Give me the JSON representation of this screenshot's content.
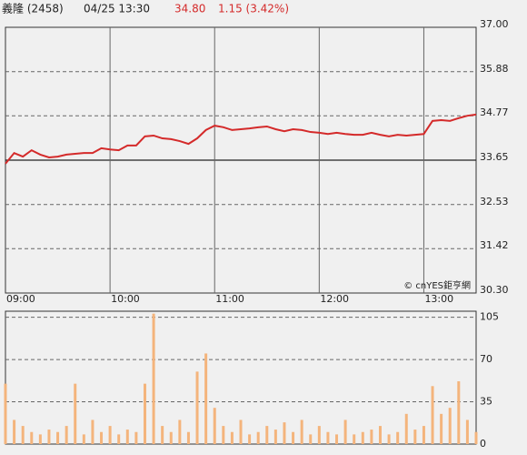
{
  "header": {
    "name": "義隆 (2458)",
    "time": "04/25 13:30",
    "price": "34.80",
    "change": "1.15 (3.42%)"
  },
  "chart_data": [
    {
      "type": "line",
      "annotation": "© cnYES鉅亨網",
      "x": [
        "09:00",
        "09:05",
        "09:10",
        "09:15",
        "09:20",
        "09:25",
        "09:30",
        "09:35",
        "09:40",
        "09:45",
        "09:50",
        "09:55",
        "10:00",
        "10:05",
        "10:10",
        "10:15",
        "10:20",
        "10:25",
        "10:30",
        "10:35",
        "10:40",
        "10:45",
        "10:50",
        "10:55",
        "11:00",
        "11:05",
        "11:10",
        "11:15",
        "11:20",
        "11:25",
        "11:30",
        "11:35",
        "11:40",
        "11:45",
        "11:50",
        "11:55",
        "12:00",
        "12:05",
        "12:10",
        "12:15",
        "12:20",
        "12:25",
        "12:30",
        "12:35",
        "12:40",
        "12:45",
        "12:50",
        "12:55",
        "13:00",
        "13:05",
        "13:10",
        "13:15",
        "13:20",
        "13:25",
        "13:30"
      ],
      "series": [
        {
          "color": "#d42a2a",
          "values": [
            33.56,
            33.83,
            33.74,
            33.9,
            33.79,
            33.72,
            33.74,
            33.79,
            33.81,
            33.83,
            33.83,
            33.95,
            33.92,
            33.9,
            34.02,
            34.02,
            34.25,
            34.27,
            34.2,
            34.18,
            34.13,
            34.06,
            34.2,
            34.41,
            34.52,
            34.48,
            34.41,
            34.43,
            34.45,
            34.48,
            34.5,
            34.43,
            34.38,
            34.43,
            34.41,
            34.36,
            34.34,
            34.31,
            34.34,
            34.31,
            34.29,
            34.29,
            34.34,
            34.29,
            34.25,
            34.29,
            34.27,
            34.29,
            34.31,
            34.64,
            34.66,
            34.64,
            34.71,
            34.77,
            34.8
          ]
        }
      ],
      "xlim": [
        "09:00",
        "13:30"
      ],
      "xticks": [
        "09:00",
        "10:00",
        "11:00",
        "12:00",
        "13:00"
      ],
      "ylim": [
        30.3,
        37
      ],
      "yticks": [
        {
          "value": 30.3,
          "label": "30.30"
        },
        31.42,
        32.53,
        33.65,
        34.77,
        35.88,
        {
          "value": 37,
          "label": "37.00"
        }
      ],
      "reference_line": 33.65,
      "grid": true
    },
    {
      "type": "bar",
      "color": "#f4b47c",
      "x": [
        "09:00",
        "09:05",
        "09:10",
        "09:15",
        "09:20",
        "09:25",
        "09:30",
        "09:35",
        "09:40",
        "09:45",
        "09:50",
        "09:55",
        "10:00",
        "10:05",
        "10:10",
        "10:15",
        "10:20",
        "10:25",
        "10:30",
        "10:35",
        "10:40",
        "10:45",
        "10:50",
        "10:55",
        "11:00",
        "11:05",
        "11:10",
        "11:15",
        "11:20",
        "11:25",
        "11:30",
        "11:35",
        "11:40",
        "11:45",
        "11:50",
        "11:55",
        "12:00",
        "12:05",
        "12:10",
        "12:15",
        "12:20",
        "12:25",
        "12:30",
        "12:35",
        "12:40",
        "12:45",
        "12:50",
        "12:55",
        "13:00",
        "13:05",
        "13:10",
        "13:15",
        "13:20",
        "13:25",
        "13:30"
      ],
      "values": [
        50,
        20,
        15,
        10,
        8,
        12,
        10,
        15,
        50,
        8,
        20,
        10,
        15,
        8,
        12,
        10,
        50,
        108,
        15,
        10,
        20,
        10,
        60,
        75,
        30,
        15,
        10,
        20,
        8,
        10,
        15,
        12,
        18,
        10,
        20,
        8,
        15,
        10,
        8,
        20,
        8,
        10,
        12,
        15,
        8,
        10,
        25,
        12,
        15,
        48,
        25,
        30,
        52,
        20,
        10
      ],
      "xlim": [
        "09:00",
        "13:30"
      ],
      "ylim": [
        0,
        110
      ],
      "yticks": [
        0,
        35,
        70,
        105
      ],
      "grid": true
    }
  ]
}
